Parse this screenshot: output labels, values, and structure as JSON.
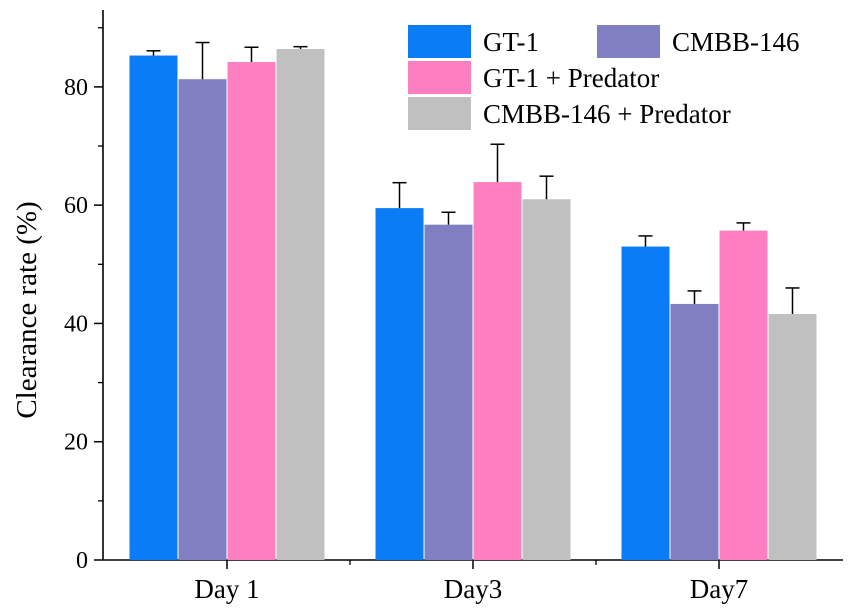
{
  "chart_data": {
    "type": "bar",
    "title": "",
    "xlabel": "",
    "ylabel": "Clearance rate (%)",
    "ylim": [
      0,
      93
    ],
    "yticks": [
      0,
      20,
      40,
      60,
      80
    ],
    "categories": [
      "Day 1",
      "Day3",
      "Day7"
    ],
    "series": [
      {
        "name": "GT-1",
        "color": "#0a7cf5",
        "values": [
          85.3,
          59.5,
          53.0
        ],
        "errors": [
          0.8,
          4.3,
          1.8
        ]
      },
      {
        "name": "CMBB-146",
        "color": "#7f7fc2",
        "values": [
          81.3,
          56.7,
          43.3
        ],
        "errors": [
          6.2,
          2.1,
          2.2
        ]
      },
      {
        "name": "GT-1 + Predator",
        "color": "#fd7fc2",
        "values": [
          84.2,
          63.9,
          55.7
        ],
        "errors": [
          2.5,
          6.4,
          1.3
        ]
      },
      {
        "name": "CMBB-146 + Predator",
        "color": "#c0c0c0",
        "values": [
          86.4,
          61.0,
          41.6
        ],
        "errors": [
          0.4,
          3.9,
          4.4
        ]
      }
    ],
    "legend_position": "top-right"
  }
}
